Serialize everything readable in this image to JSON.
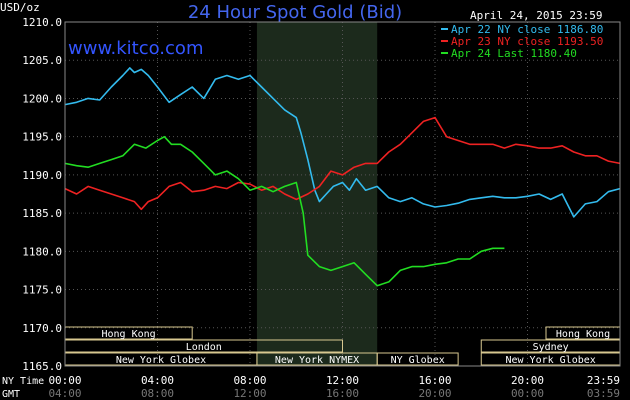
{
  "chart_data": {
    "type": "line",
    "title": "24 Hour Spot Gold (Bid)",
    "unit_label": "USD/oz",
    "watermark": "www.kitco.com",
    "date_stamp": "April 24, 2015 23:59",
    "ylim": [
      1165.0,
      1210.0
    ],
    "yticks": [
      "1210.0",
      "1205.0",
      "1200.0",
      "1195.0",
      "1190.0",
      "1185.0",
      "1180.0",
      "1175.0",
      "1170.0",
      "1165.0"
    ],
    "x_domain_hours": [
      0,
      24
    ],
    "row_labels": {
      "ny": "NY Time",
      "gmt": "GMT"
    },
    "xticks_ny": [
      "00:00",
      "04:00",
      "08:00",
      "12:00",
      "16:00",
      "20:00",
      "23:59"
    ],
    "xticks_gmt": [
      "04:00",
      "08:00",
      "12:00",
      "16:00",
      "20:00",
      "00:00",
      "03:59"
    ],
    "shaded_hours": [
      8.3,
      13.5
    ],
    "legend": [
      {
        "label": "Apr 22 NY close 1186.80",
        "color": "#33bbee"
      },
      {
        "label": "Apr 23 NY close 1193.50",
        "color": "#ee2222"
      },
      {
        "label": "Apr 24 Last 1180.40",
        "color": "#22dd22"
      }
    ],
    "series": [
      {
        "name": "Apr 22",
        "color": "#33bbee",
        "points": [
          [
            0,
            1199.2
          ],
          [
            0.5,
            1199.5
          ],
          [
            1,
            1200
          ],
          [
            1.5,
            1199.8
          ],
          [
            2,
            1201.5
          ],
          [
            2.5,
            1203
          ],
          [
            2.8,
            1204
          ],
          [
            3,
            1203.4
          ],
          [
            3.3,
            1203.8
          ],
          [
            3.6,
            1203
          ],
          [
            4,
            1201.5
          ],
          [
            4.5,
            1199.5
          ],
          [
            5,
            1200.5
          ],
          [
            5.5,
            1201.5
          ],
          [
            6,
            1200
          ],
          [
            6.5,
            1202.5
          ],
          [
            7,
            1203
          ],
          [
            7.5,
            1202.5
          ],
          [
            8,
            1203
          ],
          [
            8.5,
            1201.5
          ],
          [
            9,
            1200
          ],
          [
            9.5,
            1198.5
          ],
          [
            10,
            1197.5
          ],
          [
            10.2,
            1195.5
          ],
          [
            10.5,
            1192
          ],
          [
            10.8,
            1188
          ],
          [
            11,
            1186.5
          ],
          [
            11.3,
            1187.5
          ],
          [
            11.6,
            1188.5
          ],
          [
            12,
            1189
          ],
          [
            12.3,
            1188
          ],
          [
            12.6,
            1189.5
          ],
          [
            13,
            1188
          ],
          [
            13.5,
            1188.5
          ],
          [
            14,
            1187
          ],
          [
            14.5,
            1186.5
          ],
          [
            15,
            1187
          ],
          [
            15.5,
            1186.2
          ],
          [
            16,
            1185.8
          ],
          [
            16.5,
            1186
          ],
          [
            17,
            1186.3
          ],
          [
            17.5,
            1186.8
          ],
          [
            18,
            1187
          ],
          [
            18.5,
            1187.2
          ],
          [
            19,
            1187
          ],
          [
            19.5,
            1187
          ],
          [
            20,
            1187.2
          ],
          [
            20.5,
            1187.5
          ],
          [
            21,
            1186.8
          ],
          [
            21.5,
            1187.5
          ],
          [
            22,
            1184.5
          ],
          [
            22.5,
            1186.2
          ],
          [
            23,
            1186.5
          ],
          [
            23.5,
            1187.8
          ],
          [
            24,
            1188.2
          ]
        ]
      },
      {
        "name": "Apr 23",
        "color": "#ee2222",
        "points": [
          [
            0,
            1188.2
          ],
          [
            0.5,
            1187.5
          ],
          [
            1,
            1188.5
          ],
          [
            1.5,
            1188
          ],
          [
            2,
            1187.5
          ],
          [
            2.5,
            1187
          ],
          [
            3,
            1186.5
          ],
          [
            3.3,
            1185.5
          ],
          [
            3.6,
            1186.5
          ],
          [
            4,
            1187
          ],
          [
            4.5,
            1188.5
          ],
          [
            5,
            1189
          ],
          [
            5.5,
            1187.8
          ],
          [
            6,
            1188
          ],
          [
            6.5,
            1188.5
          ],
          [
            7,
            1188.2
          ],
          [
            7.5,
            1189
          ],
          [
            8,
            1188.8
          ],
          [
            8.5,
            1188
          ],
          [
            9,
            1188.5
          ],
          [
            9.5,
            1187.5
          ],
          [
            10,
            1186.8
          ],
          [
            10.5,
            1187.5
          ],
          [
            11,
            1188.5
          ],
          [
            11.5,
            1190.5
          ],
          [
            12,
            1190
          ],
          [
            12.5,
            1191
          ],
          [
            13,
            1191.5
          ],
          [
            13.5,
            1191.5
          ],
          [
            14,
            1193
          ],
          [
            14.5,
            1194
          ],
          [
            15,
            1195.5
          ],
          [
            15.5,
            1197
          ],
          [
            16,
            1197.5
          ],
          [
            16.5,
            1195
          ],
          [
            17,
            1194.5
          ],
          [
            17.5,
            1194
          ],
          [
            18,
            1194
          ],
          [
            18.5,
            1194
          ],
          [
            19,
            1193.5
          ],
          [
            19.5,
            1194
          ],
          [
            20,
            1193.8
          ],
          [
            20.5,
            1193.5
          ],
          [
            21,
            1193.5
          ],
          [
            21.5,
            1193.8
          ],
          [
            22,
            1193
          ],
          [
            22.5,
            1192.5
          ],
          [
            23,
            1192.5
          ],
          [
            23.5,
            1191.8
          ],
          [
            24,
            1191.5
          ]
        ]
      },
      {
        "name": "Apr 24",
        "color": "#22dd22",
        "points": [
          [
            0,
            1191.5
          ],
          [
            0.5,
            1191.2
          ],
          [
            1,
            1191
          ],
          [
            1.5,
            1191.5
          ],
          [
            2,
            1192
          ],
          [
            2.5,
            1192.5
          ],
          [
            3,
            1194
          ],
          [
            3.5,
            1193.5
          ],
          [
            4,
            1194.5
          ],
          [
            4.3,
            1195
          ],
          [
            4.6,
            1194
          ],
          [
            5,
            1194
          ],
          [
            5.5,
            1193
          ],
          [
            6,
            1191.5
          ],
          [
            6.5,
            1190
          ],
          [
            7,
            1190.5
          ],
          [
            7.5,
            1189.5
          ],
          [
            8,
            1188
          ],
          [
            8.5,
            1188.5
          ],
          [
            9,
            1187.8
          ],
          [
            9.5,
            1188.5
          ],
          [
            10,
            1189
          ],
          [
            10.3,
            1185
          ],
          [
            10.5,
            1179.5
          ],
          [
            11,
            1178
          ],
          [
            11.5,
            1177.5
          ],
          [
            12,
            1178
          ],
          [
            12.5,
            1178.5
          ],
          [
            13,
            1177
          ],
          [
            13.5,
            1175.5
          ],
          [
            14,
            1176
          ],
          [
            14.5,
            1177.5
          ],
          [
            15,
            1178
          ],
          [
            15.5,
            1178
          ],
          [
            16,
            1178.3
          ],
          [
            16.5,
            1178.5
          ],
          [
            17,
            1179
          ],
          [
            17.5,
            1179
          ],
          [
            18,
            1180
          ],
          [
            18.5,
            1180.4
          ],
          [
            19,
            1180.4
          ]
        ]
      }
    ],
    "session_bars": [
      {
        "label": "Hong Kong",
        "start": 0,
        "end": 5.5,
        "row": 0
      },
      {
        "label": "Hong Kong",
        "start": 20.8,
        "end": 24,
        "row": 0
      },
      {
        "label": "London",
        "start": 0,
        "end": 12,
        "row": 1
      },
      {
        "label": "Sydney",
        "start": 18,
        "end": 24,
        "row": 1
      },
      {
        "label": "New York Globex",
        "start": 0,
        "end": 8.3,
        "row": 2
      },
      {
        "label": "New York NYMEX",
        "start": 8.3,
        "end": 13.5,
        "row": 2
      },
      {
        "label": "NY Globex",
        "start": 13.5,
        "end": 17,
        "row": 2
      },
      {
        "label": "New York Globex",
        "start": 18,
        "end": 24,
        "row": 2
      }
    ]
  }
}
